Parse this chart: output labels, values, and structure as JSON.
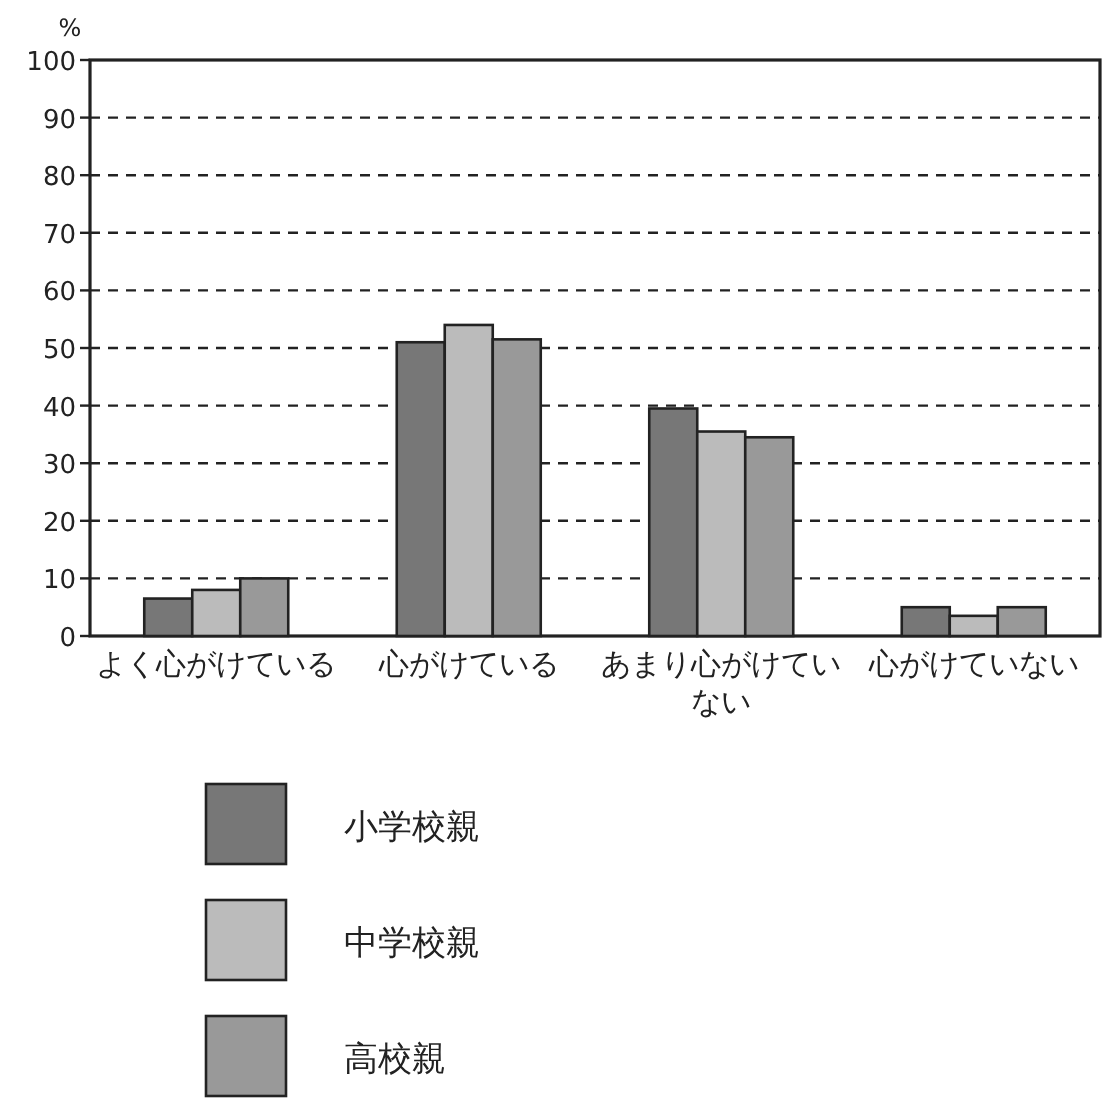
{
  "chart_data": {
    "type": "bar",
    "ylabel": "%",
    "categories": [
      "よく心がけている",
      "心がけている",
      "あまり心がけていない",
      "心がけていない"
    ],
    "series": [
      {
        "name": "小学校親",
        "color": "#777777",
        "values": [
          6.5,
          51,
          39.5,
          5
        ]
      },
      {
        "name": "中学校親",
        "color": "#bbbbbb",
        "values": [
          8,
          54,
          35.5,
          3.5
        ]
      },
      {
        "name": "高校親",
        "color": "#999999",
        "values": [
          10,
          51.5,
          34.5,
          5
        ]
      }
    ],
    "ylim": [
      0,
      100
    ],
    "yticks": [
      0,
      10,
      20,
      30,
      40,
      50,
      60,
      70,
      80,
      90,
      100
    ],
    "grid": "y",
    "legend": "bottom"
  }
}
